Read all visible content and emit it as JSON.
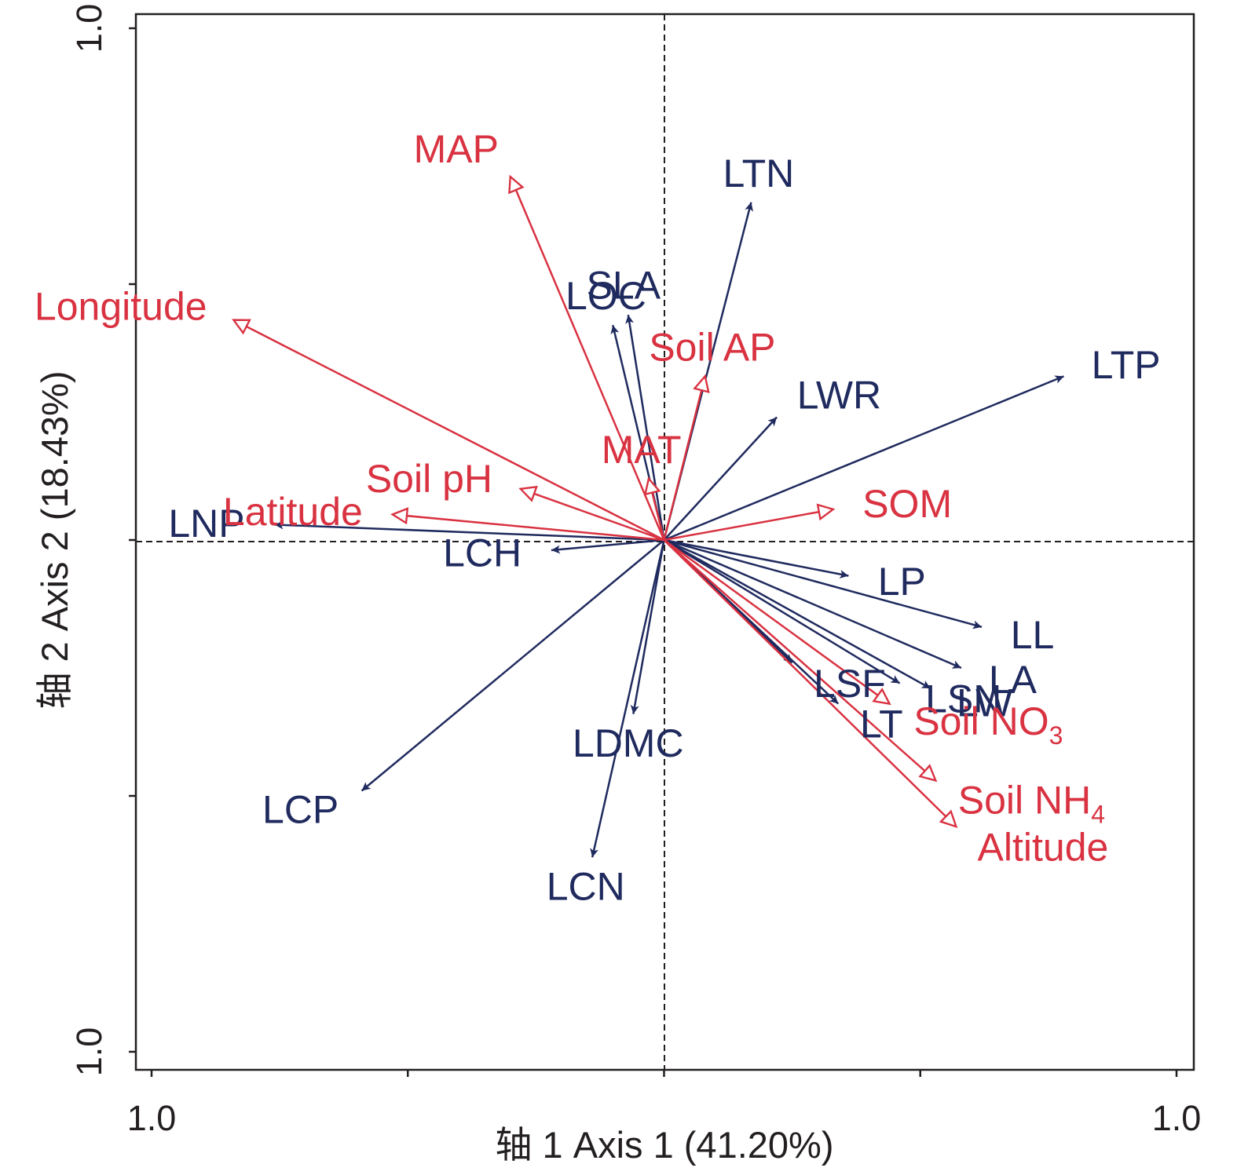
{
  "chart_data": {
    "type": "biplot",
    "xlabel": "轴 1 Axis 1 (41.20%)",
    "ylabel": "轴 2 Axis 2 (18.43%)",
    "xlim": [
      -1.0,
      1.0
    ],
    "ylim": [
      -1.0,
      1.0
    ],
    "x_tick_labels": [
      "1.0",
      "1.0"
    ],
    "y_tick_labels": [
      "1.0",
      "1.0"
    ],
    "reference_lines": "dashed lines at x = 0 and y = 0",
    "grid": false,
    "legend": "none",
    "colors": {
      "traits": "#1f2a5e",
      "environment": "#d93241",
      "axis": "#231f20"
    },
    "series": [
      {
        "arrow_style": "filled",
        "color": "#1f2a5e",
        "vectors": [
          {
            "label": "LTN",
            "x": 0.17,
            "y": 0.66
          },
          {
            "label": "SLA",
            "x": -0.07,
            "y": 0.44
          },
          {
            "label": "LOC",
            "x": -0.1,
            "y": 0.42
          },
          {
            "label": "LTP",
            "x": 0.78,
            "y": 0.32
          },
          {
            "label": "LWR",
            "x": 0.22,
            "y": 0.24
          },
          {
            "label": "LNP",
            "x": -0.76,
            "y": 0.03
          },
          {
            "label": "LCH",
            "x": -0.22,
            "y": -0.02
          },
          {
            "label": "LP",
            "x": 0.36,
            "y": -0.07
          },
          {
            "label": "LL",
            "x": 0.62,
            "y": -0.17
          },
          {
            "label": "LA",
            "x": 0.58,
            "y": -0.25
          },
          {
            "label": "LSN",
            "x": 0.46,
            "y": -0.28
          },
          {
            "label": "LW",
            "x": 0.52,
            "y": -0.29
          },
          {
            "label": "LSF",
            "x": 0.25,
            "y": -0.24
          },
          {
            "label": "LT",
            "x": 0.34,
            "y": -0.32
          },
          {
            "label": "LDMC",
            "x": -0.06,
            "y": -0.34
          },
          {
            "label": "LCP",
            "x": -0.59,
            "y": -0.49
          },
          {
            "label": "LCN",
            "x": -0.14,
            "y": -0.62
          }
        ]
      },
      {
        "arrow_style": "open",
        "color": "#d93241",
        "vectors": [
          {
            "label": "MAP",
            "x": -0.3,
            "y": 0.71
          },
          {
            "label": "Longitude",
            "x": -0.84,
            "y": 0.43
          },
          {
            "label": "Soil AP",
            "x": 0.08,
            "y": 0.32
          },
          {
            "label": "MAT",
            "x": -0.03,
            "y": 0.12
          },
          {
            "label": "Soil pH",
            "x": -0.28,
            "y": 0.1
          },
          {
            "label": "Latitude",
            "x": -0.53,
            "y": 0.05
          },
          {
            "label": "SOM",
            "x": 0.33,
            "y": 0.06
          },
          {
            "label": "Soil NO",
            "sub": "3",
            "x": 0.44,
            "y": -0.32
          },
          {
            "label": "Soil NH",
            "sub": "4",
            "x": 0.53,
            "y": -0.47
          },
          {
            "label": "Altitude",
            "x": 0.57,
            "y": -0.56
          }
        ]
      }
    ]
  }
}
